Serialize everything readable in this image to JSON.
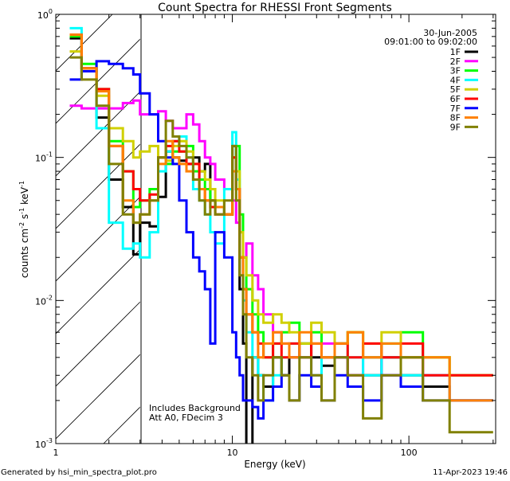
{
  "chart_data": {
    "type": "line",
    "title": "Count Spectra for RHESSI Front Segments",
    "xlabel": "Energy (keV)",
    "ylabel": "counts cm-2 s-1 keV-1",
    "ylabel_parts": {
      "base": "counts cm",
      "e1": "-2",
      "mid1": " s",
      "e2": "-1",
      "mid2": " keV",
      "e3": "-1"
    },
    "xscale": "log",
    "yscale": "log",
    "xlim": [
      1,
      310
    ],
    "ylim": [
      0.001,
      1
    ],
    "x_tick_labels": [
      "1",
      "10",
      "100"
    ],
    "y_tick_labels": [
      {
        "base": "10",
        "exp": "0"
      },
      {
        "base": "10",
        "exp": "-1"
      },
      {
        "base": "10",
        "exp": "-2"
      },
      {
        "base": "10",
        "exp": "-3"
      }
    ],
    "date": "30-Jun-2005",
    "time_range": "09:01:00 to 09:02:00",
    "shaded_region_keV": [
      1,
      3
    ],
    "annotations": [
      "Includes Background",
      "Att A0, FDecim 3"
    ],
    "legend_placement": "top-right",
    "bin_edges_keV": [
      1.2,
      1.4,
      1.7,
      2.0,
      2.4,
      2.75,
      3.0,
      3.4,
      3.8,
      4.2,
      4.6,
      5.0,
      5.5,
      6.0,
      6.5,
      7.0,
      7.5,
      8.0,
      9.0,
      10.0,
      10.5,
      11.0,
      11.5,
      12.0,
      13,
      14,
      15,
      17,
      19,
      21,
      24,
      28,
      32,
      38,
      45,
      55,
      70,
      90,
      120,
      170,
      300
    ],
    "series": [
      {
        "name": "1F",
        "color": "#000000",
        "values": [
          0.68,
          0.42,
          0.19,
          0.07,
          0.045,
          0.021,
          0.035,
          0.033,
          0.053,
          0.11,
          0.1,
          0.095,
          0.09,
          0.1,
          0.08,
          0.09,
          0.05,
          0.045,
          0.04,
          0.12,
          0.06,
          0.012,
          0.005,
          0.0009,
          0.004,
          0.003,
          0.0025,
          0.004,
          0.003,
          0.004,
          0.005,
          0.004,
          0.0035,
          0.004,
          0.003,
          0.003,
          0.004,
          0.003,
          0.0025,
          0.002
        ]
      },
      {
        "name": "2F",
        "color": "#ff00ff",
        "values": [
          0.23,
          0.22,
          0.22,
          0.22,
          0.24,
          0.25,
          0.2,
          0.2,
          0.21,
          0.18,
          0.16,
          0.16,
          0.2,
          0.17,
          0.13,
          0.1,
          0.09,
          0.07,
          0.06,
          0.05,
          0.035,
          0.03,
          0.02,
          0.025,
          0.015,
          0.012,
          0.008,
          0.006,
          0.005,
          0.004,
          0.004,
          0.003,
          0.005,
          0.004,
          0.003,
          0.004,
          0.003,
          0.004,
          0.003,
          0.002
        ]
      },
      {
        "name": "3F",
        "color": "#00ff00",
        "values": [
          0.7,
          0.45,
          0.3,
          0.13,
          0.08,
          0.045,
          0.05,
          0.06,
          0.1,
          0.09,
          0.11,
          0.11,
          0.12,
          0.08,
          0.07,
          0.06,
          0.05,
          0.045,
          0.04,
          0.1,
          0.12,
          0.04,
          0.02,
          0.012,
          0.008,
          0.006,
          0.004,
          0.005,
          0.006,
          0.007,
          0.005,
          0.006,
          0.004,
          0.005,
          0.006,
          0.004,
          0.005,
          0.006,
          0.004,
          0.003
        ]
      },
      {
        "name": "4F",
        "color": "#00ffff",
        "values": [
          0.8,
          0.4,
          0.16,
          0.035,
          0.023,
          0.025,
          0.02,
          0.03,
          0.08,
          0.11,
          0.13,
          0.14,
          0.1,
          0.06,
          0.05,
          0.04,
          0.03,
          0.025,
          0.06,
          0.15,
          0.07,
          0.02,
          0.01,
          0.006,
          0.004,
          0.003,
          0.002,
          0.003,
          0.004,
          0.005,
          0.004,
          0.003,
          0.004,
          0.005,
          0.004,
          0.003,
          0.004,
          0.003,
          0.003,
          0.002
        ]
      },
      {
        "name": "5F",
        "color": "#d0d000",
        "values": [
          0.55,
          0.4,
          0.27,
          0.16,
          0.13,
          0.1,
          0.11,
          0.12,
          0.1,
          0.095,
          0.12,
          0.13,
          0.11,
          0.09,
          0.08,
          0.07,
          0.06,
          0.05,
          0.04,
          0.1,
          0.08,
          0.03,
          0.02,
          0.015,
          0.01,
          0.008,
          0.007,
          0.008,
          0.007,
          0.006,
          0.005,
          0.007,
          0.006,
          0.005,
          0.006,
          0.005,
          0.006,
          0.004,
          0.004,
          0.003
        ]
      },
      {
        "name": "6F",
        "color": "#ff0000",
        "values": [
          0.72,
          0.42,
          0.3,
          0.12,
          0.08,
          0.06,
          0.05,
          0.055,
          0.1,
          0.12,
          0.13,
          0.11,
          0.09,
          0.09,
          0.06,
          0.05,
          0.045,
          0.04,
          0.04,
          0.1,
          0.06,
          0.02,
          0.012,
          0.008,
          0.006,
          0.005,
          0.004,
          0.005,
          0.004,
          0.005,
          0.004,
          0.005,
          0.004,
          0.005,
          0.004,
          0.005,
          0.004,
          0.005,
          0.003,
          0.003
        ]
      },
      {
        "name": "7F",
        "color": "#0000ff",
        "values": [
          0.35,
          0.4,
          0.47,
          0.45,
          0.42,
          0.38,
          0.28,
          0.2,
          0.13,
          0.1,
          0.09,
          0.05,
          0.03,
          0.02,
          0.016,
          0.012,
          0.005,
          0.03,
          0.02,
          0.006,
          0.004,
          0.003,
          0.002,
          0.002,
          0.0018,
          0.0015,
          0.002,
          0.0025,
          0.003,
          0.002,
          0.003,
          0.0025,
          0.002,
          0.003,
          0.0025,
          0.002,
          0.003,
          0.0025,
          0.002,
          0.002
        ]
      },
      {
        "name": "8F",
        "color": "#ff8000",
        "values": [
          0.72,
          0.42,
          0.29,
          0.12,
          0.05,
          0.035,
          0.04,
          0.05,
          0.09,
          0.13,
          0.1,
          0.09,
          0.08,
          0.07,
          0.06,
          0.05,
          0.05,
          0.045,
          0.04,
          0.08,
          0.06,
          0.02,
          0.012,
          0.008,
          0.006,
          0.004,
          0.005,
          0.006,
          0.005,
          0.004,
          0.006,
          0.005,
          0.004,
          0.005,
          0.006,
          0.004,
          0.005,
          0.004,
          0.004,
          0.002
        ]
      },
      {
        "name": "9F",
        "color": "#808000",
        "values": [
          0.5,
          0.35,
          0.23,
          0.09,
          0.04,
          0.035,
          0.04,
          0.05,
          0.1,
          0.18,
          0.14,
          0.12,
          0.1,
          0.07,
          0.05,
          0.04,
          0.05,
          0.04,
          0.05,
          0.12,
          0.05,
          0.015,
          0.008,
          0.004,
          0.003,
          0.002,
          0.003,
          0.004,
          0.003,
          0.002,
          0.004,
          0.003,
          0.002,
          0.004,
          0.003,
          0.0015,
          0.003,
          0.004,
          0.002,
          0.0012
        ]
      }
    ]
  },
  "footer": {
    "generated_by": "Generated by hsi_min_spectra_plot.pro",
    "timestamp": "11-Apr-2023 19:46"
  }
}
